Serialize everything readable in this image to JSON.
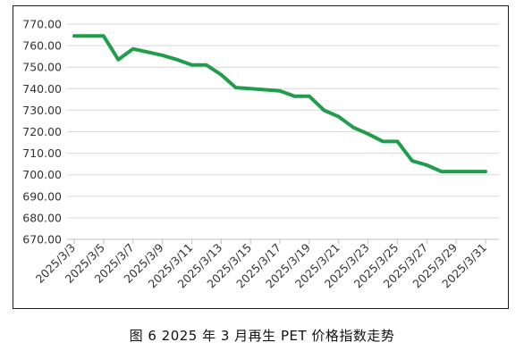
{
  "chart_data": {
    "type": "line",
    "title": "",
    "xlabel": "",
    "ylabel": "",
    "ylim": [
      670,
      770
    ],
    "ytick_step": 10,
    "ytick_format": "2dp",
    "grid": true,
    "legend": "none",
    "x": [
      "2025/3/3",
      "2025/3/4",
      "2025/3/5",
      "2025/3/6",
      "2025/3/7",
      "2025/3/8",
      "2025/3/9",
      "2025/3/10",
      "2025/3/11",
      "2025/3/12",
      "2025/3/13",
      "2025/3/14",
      "2025/3/15",
      "2025/3/16",
      "2025/3/17",
      "2025/3/18",
      "2025/3/19",
      "2025/3/20",
      "2025/3/21",
      "2025/3/22",
      "2025/3/23",
      "2025/3/24",
      "2025/3/25",
      "2025/3/26",
      "2025/3/27",
      "2025/3/28",
      "2025/3/29",
      "2025/3/30",
      "2025/3/31"
    ],
    "series": [
      {
        "color": "#1e9e4a",
        "values": [
          764.5,
          764.5,
          764.5,
          753.5,
          758.5,
          757,
          755.5,
          753.5,
          751,
          751,
          746.5,
          740.5,
          740,
          739.5,
          739,
          736.5,
          736.5,
          730,
          727,
          722,
          719,
          715.5,
          715.5,
          706.5,
          704.5,
          701.5,
          701.5,
          701.5,
          701.5
        ]
      }
    ],
    "xtick_labels": [
      "2025/3/3",
      "2025/3/5",
      "2025/3/7",
      "2025/3/9",
      "2025/3/11",
      "2025/3/13",
      "2025/3/15",
      "2025/3/17",
      "2025/3/19",
      "2025/3/21",
      "2025/3/23",
      "2025/3/25",
      "2025/3/27",
      "2025/3/29",
      "2025/3/31"
    ]
  },
  "caption": "图 6  2025 年 3 月再生 PET 价格指数走势"
}
